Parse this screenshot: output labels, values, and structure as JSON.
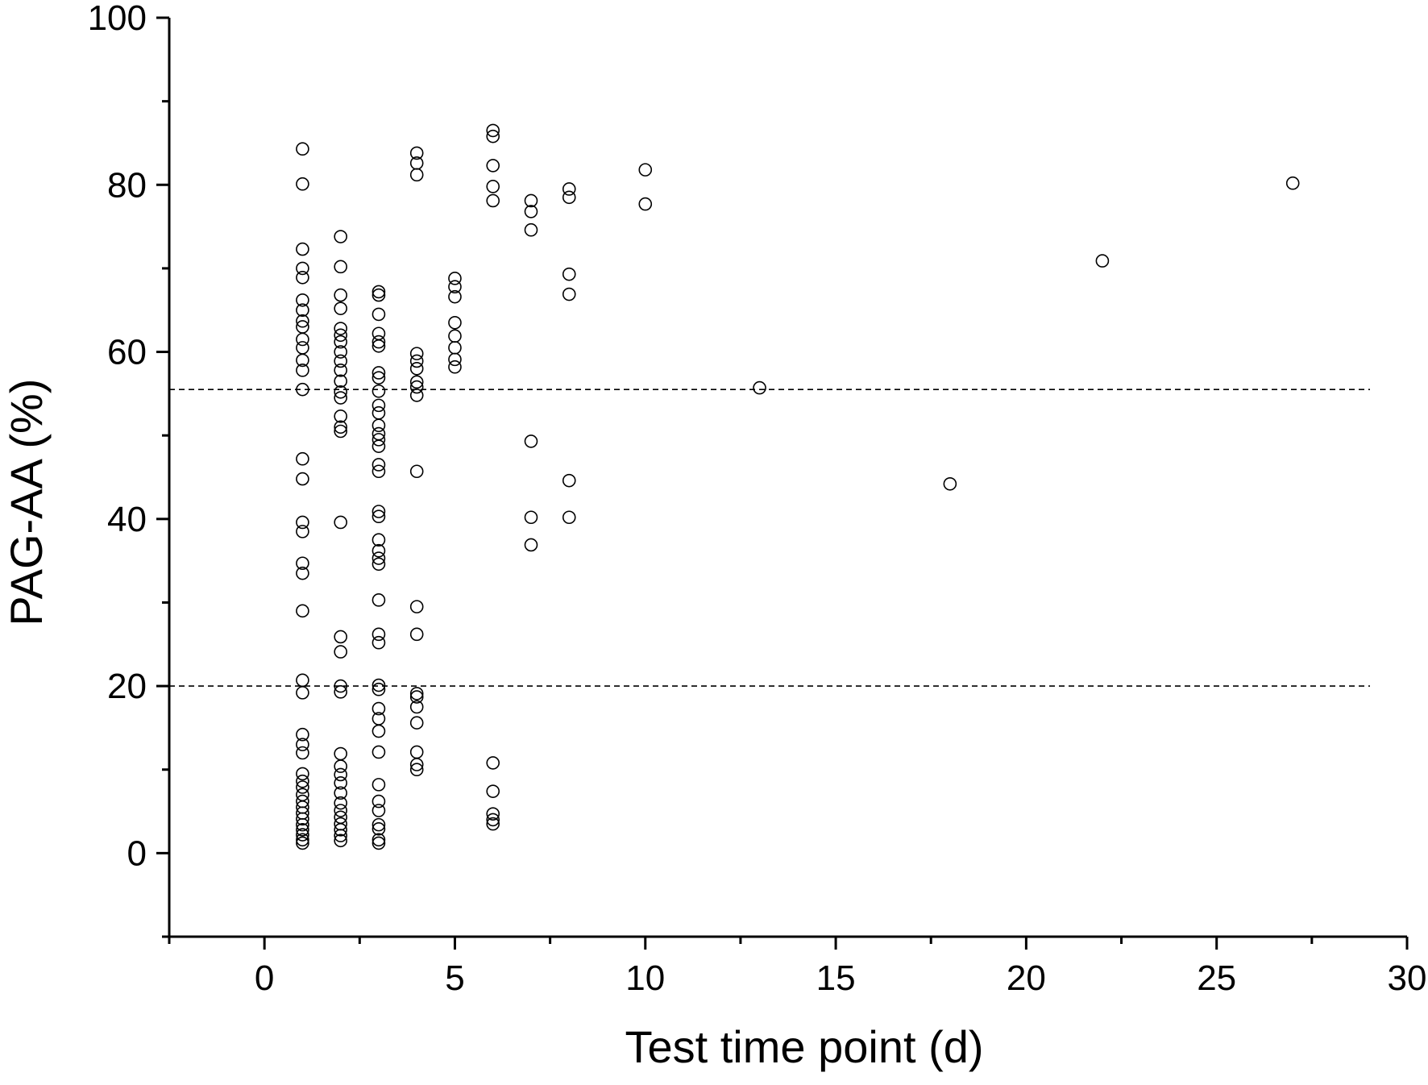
{
  "chart_data": {
    "type": "scatter",
    "title": "",
    "xlabel": "Test time point (d)",
    "ylabel": "PAG-AA (%)",
    "xlim": [
      -2.5,
      30
    ],
    "ylim": [
      -10,
      100
    ],
    "xticks": [
      0,
      5,
      10,
      15,
      20,
      25,
      30
    ],
    "yticks": [
      0,
      20,
      40,
      60,
      80,
      100
    ],
    "x_minor_step": 2.5,
    "y_minor_step": 10,
    "grid": false,
    "legend": "none",
    "marker": "open-circle",
    "reference_lines": [
      {
        "axis": "y",
        "value": 55.5,
        "style": "dashed"
      },
      {
        "axis": "y",
        "value": 20,
        "style": "dashed"
      }
    ],
    "series": [
      {
        "points": [
          [
            1,
            84.3
          ],
          [
            1,
            80.1
          ],
          [
            1,
            72.3
          ],
          [
            1,
            70
          ],
          [
            1,
            68.9
          ],
          [
            1,
            66.2
          ],
          [
            1,
            65
          ],
          [
            1,
            63.7
          ],
          [
            1,
            63
          ],
          [
            1,
            61.5
          ],
          [
            1,
            60.5
          ],
          [
            1,
            59
          ],
          [
            1,
            57.8
          ],
          [
            1,
            55.5
          ],
          [
            1,
            47.2
          ],
          [
            1,
            44.8
          ],
          [
            1,
            39.6
          ],
          [
            1,
            38.5
          ],
          [
            1,
            34.7
          ],
          [
            1,
            33.5
          ],
          [
            1,
            29
          ],
          [
            1,
            20.7
          ],
          [
            1,
            19.2
          ],
          [
            1,
            14.2
          ],
          [
            1,
            13
          ],
          [
            1,
            12
          ],
          [
            1,
            9.5
          ],
          [
            1,
            8.6
          ],
          [
            1,
            7.9
          ],
          [
            1,
            7
          ],
          [
            1,
            6.2
          ],
          [
            1,
            5.5
          ],
          [
            1,
            4.8
          ],
          [
            1,
            4.1
          ],
          [
            1,
            3.4
          ],
          [
            1,
            2.8
          ],
          [
            1,
            2.2
          ],
          [
            1,
            1.6
          ],
          [
            1,
            1.2
          ],
          [
            2,
            73.8
          ],
          [
            2,
            70.2
          ],
          [
            2,
            66.8
          ],
          [
            2,
            65.2
          ],
          [
            2,
            62.8
          ],
          [
            2,
            62
          ],
          [
            2,
            61.2
          ],
          [
            2,
            60
          ],
          [
            2,
            58.9
          ],
          [
            2,
            57.8
          ],
          [
            2,
            56.5
          ],
          [
            2,
            55.2
          ],
          [
            2,
            54.5
          ],
          [
            2,
            52.3
          ],
          [
            2,
            51
          ],
          [
            2,
            50.5
          ],
          [
            2,
            39.6
          ],
          [
            2,
            25.9
          ],
          [
            2,
            24.1
          ],
          [
            2,
            20
          ],
          [
            2,
            19.3
          ],
          [
            2,
            11.9
          ],
          [
            2,
            10.4
          ],
          [
            2,
            9.4
          ],
          [
            2,
            8.4
          ],
          [
            2,
            7.2
          ],
          [
            2,
            6
          ],
          [
            2,
            5.1
          ],
          [
            2,
            4.3
          ],
          [
            2,
            3.5
          ],
          [
            2,
            2.8
          ],
          [
            2,
            2.1
          ],
          [
            2,
            1.5
          ],
          [
            3,
            67.2
          ],
          [
            3,
            66.8
          ],
          [
            3,
            64.5
          ],
          [
            3,
            62.2
          ],
          [
            3,
            61.2
          ],
          [
            3,
            60.7
          ],
          [
            3,
            57.5
          ],
          [
            3,
            56.9
          ],
          [
            3,
            55.3
          ],
          [
            3,
            53.6
          ],
          [
            3,
            52.7
          ],
          [
            3,
            51.2
          ],
          [
            3,
            50.2
          ],
          [
            3,
            49.5
          ],
          [
            3,
            48.7
          ],
          [
            3,
            46.5
          ],
          [
            3,
            45.7
          ],
          [
            3,
            40.9
          ],
          [
            3,
            40.3
          ],
          [
            3,
            37.5
          ],
          [
            3,
            36.2
          ],
          [
            3,
            35.3
          ],
          [
            3,
            34.6
          ],
          [
            3,
            30.3
          ],
          [
            3,
            26.2
          ],
          [
            3,
            25.2
          ],
          [
            3,
            20.1
          ],
          [
            3,
            19.6
          ],
          [
            3,
            17.3
          ],
          [
            3,
            16.1
          ],
          [
            3,
            14.6
          ],
          [
            3,
            12.1
          ],
          [
            3,
            8.2
          ],
          [
            3,
            6.2
          ],
          [
            3,
            5.1
          ],
          [
            3,
            3.4
          ],
          [
            3,
            2.9
          ],
          [
            3,
            1.6
          ],
          [
            3,
            1.2
          ],
          [
            4,
            83.8
          ],
          [
            4,
            82.6
          ],
          [
            4,
            81.2
          ],
          [
            4,
            59.8
          ],
          [
            4,
            58.9
          ],
          [
            4,
            58
          ],
          [
            4,
            56.4
          ],
          [
            4,
            55.8
          ],
          [
            4,
            54.8
          ],
          [
            4,
            45.7
          ],
          [
            4,
            29.5
          ],
          [
            4,
            26.2
          ],
          [
            4,
            19.1
          ],
          [
            4,
            18.7
          ],
          [
            4,
            17.5
          ],
          [
            4,
            15.6
          ],
          [
            4,
            12.1
          ],
          [
            4,
            10.6
          ],
          [
            4,
            10
          ],
          [
            5,
            68.8
          ],
          [
            5,
            67.8
          ],
          [
            5,
            66.6
          ],
          [
            5,
            63.5
          ],
          [
            5,
            61.9
          ],
          [
            5,
            60.5
          ],
          [
            5,
            59.1
          ],
          [
            5,
            58.2
          ],
          [
            6,
            86.5
          ],
          [
            6,
            85.8
          ],
          [
            6,
            82.3
          ],
          [
            6,
            79.8
          ],
          [
            6,
            78.1
          ],
          [
            6,
            10.8
          ],
          [
            6,
            7.4
          ],
          [
            6,
            4.7
          ],
          [
            6,
            4
          ],
          [
            6,
            3.5
          ],
          [
            7,
            78.1
          ],
          [
            7,
            76.8
          ],
          [
            7,
            74.6
          ],
          [
            7,
            49.3
          ],
          [
            7,
            40.2
          ],
          [
            7,
            36.9
          ],
          [
            8,
            79.5
          ],
          [
            8,
            78.5
          ],
          [
            8,
            69.3
          ],
          [
            8,
            66.9
          ],
          [
            8,
            44.6
          ],
          [
            8,
            40.2
          ],
          [
            10,
            81.8
          ],
          [
            10,
            77.7
          ],
          [
            13,
            55.7
          ],
          [
            18,
            44.2
          ],
          [
            22,
            70.9
          ],
          [
            27,
            80.2
          ]
        ]
      }
    ]
  }
}
